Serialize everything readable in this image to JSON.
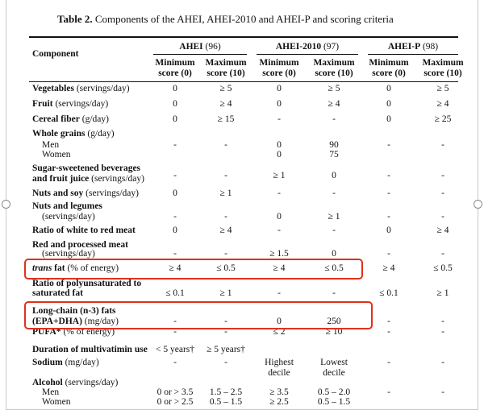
{
  "caption": {
    "label": "Table 2.",
    "text": " Components of the AHEI, AHEI-2010 and AHEI-P and scoring criteria"
  },
  "header": {
    "component": "Component",
    "groups": [
      {
        "name": "AHEI",
        "count": " (96)"
      },
      {
        "name": "AHEI-2010",
        "count": " (97)"
      },
      {
        "name": "AHEI-P",
        "count": " (98)"
      }
    ],
    "min_label": [
      "Minimum",
      "score (0)"
    ],
    "max_label": [
      "Maximum",
      "score (10)"
    ]
  },
  "rows": [
    {
      "label_bold": "Vegetables",
      "label_rest": " (servings/day)",
      "values": [
        "0",
        "≥ 5",
        "0",
        "≥ 5",
        "0",
        "≥ 5"
      ]
    },
    {
      "label_bold": "Fruit",
      "label_rest": " (servings/day)",
      "values": [
        "0",
        "≥ 4",
        "0",
        "≥ 4",
        "0",
        "≥ 4"
      ]
    },
    {
      "label_bold": "Cereal fiber",
      "label_rest": " (g/day)",
      "values": [
        "0",
        "≥ 15",
        "-",
        "-",
        "0",
        "≥ 25"
      ]
    },
    {
      "label_bold": "Whole grains",
      "label_rest": " (g/day)",
      "values": []
    },
    {
      "label_plain": "Men",
      "values": [
        "-",
        "-",
        "0",
        "90",
        "-",
        "-"
      ]
    },
    {
      "label_plain": "Women",
      "values": [
        "",
        "",
        "0",
        "75",
        "",
        ""
      ]
    },
    {
      "label_bold": "Sugar-sweetened beverages",
      "values": []
    },
    {
      "label_bold": "and fruit juice",
      "label_rest": " (servings/day)",
      "values": []
    },
    {
      "values": [
        "-",
        "-",
        "≥ 1",
        "0",
        "-",
        "-"
      ]
    },
    {
      "label_bold": "Nuts and soy",
      "label_rest": " (servings/day)",
      "values": [
        "0",
        "≥ 1",
        "-",
        "-",
        "-",
        "-"
      ]
    },
    {
      "label_bold": "Nuts and legumes",
      "values": []
    },
    {
      "label_plain": "(servings/day)",
      "values": [
        "-",
        "-",
        "0",
        "≥ 1",
        "-",
        "-"
      ]
    },
    {
      "label_bold": "Ratio of white to red meat",
      "values": [
        "0",
        "≥ 4",
        "-",
        "-",
        "0",
        "≥ 4"
      ]
    },
    {
      "label_bold": "Red and processed meat",
      "values": []
    },
    {
      "label_plain": "(servings/day)",
      "values": [
        "-",
        "-",
        "≥ 1.5",
        "0",
        "-",
        "-"
      ]
    },
    {
      "label_italic": "trans",
      "label_bold": " fat",
      "label_rest": " (% of energy)",
      "values": [
        "≥ 4",
        "≤ 0.5",
        "≥ 4",
        "≤ 0.5",
        "≥ 4",
        "≤ 0.5"
      ]
    },
    {
      "label_bold": "Ratio of polyunsaturated to",
      "values": []
    },
    {
      "label_bold": "saturated fat",
      "values": [
        "≤ 0.1",
        "≥ 1",
        "-",
        "-",
        "≤ 0.1",
        "≥ 1"
      ]
    },
    {
      "label_bold": "Long-chain (n-3) fats",
      "values": []
    },
    {
      "label_bold": "(EPA+DHA)",
      "label_rest": " (mg/day)",
      "values": [
        "-",
        "-",
        "0",
        "250",
        "-",
        "-"
      ]
    },
    {
      "label_bold": "PUFA*",
      "label_rest": " (% of energy)",
      "values": [
        "-",
        "-",
        "≤ 2",
        "≥ 10",
        "-",
        "-"
      ]
    },
    {
      "label_bold": "Duration of multivatimin use",
      "values": [
        "< 5 years†",
        "≥ 5 years†",
        "",
        "",
        "",
        ""
      ]
    },
    {
      "label_bold": "Sodium",
      "label_rest": " (mg/day)",
      "values": [
        "-",
        "-",
        "Highest",
        "Lowest",
        "-",
        "-"
      ],
      "values2": [
        "",
        "",
        "decile",
        "decile",
        "",
        ""
      ]
    },
    {
      "label_bold": "Alcohol",
      "label_rest": " (servings/day)",
      "values": []
    },
    {
      "label_plain": "Men",
      "values": [
        "0 or > 3.5",
        "1.5 – 2.5",
        "≥ 3.5",
        "0.5 – 2.0",
        "-",
        "-"
      ]
    },
    {
      "label_plain": "Women",
      "values": [
        "0 or > 2.5",
        "0.5 – 1.5",
        "≥ 2.5",
        "0.5 – 1.5",
        "",
        ""
      ]
    }
  ],
  "highlights": [
    "trans fat row",
    "Long-chain (n-3) fats row"
  ]
}
